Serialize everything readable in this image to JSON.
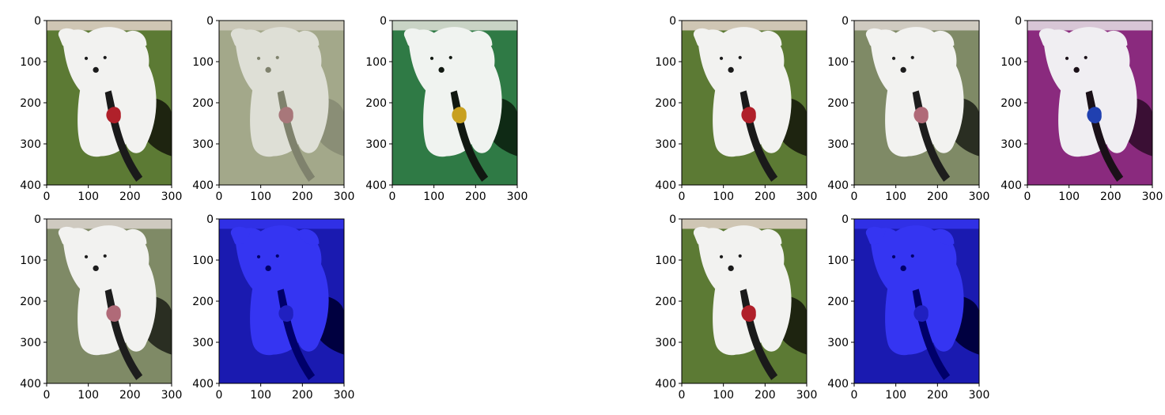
{
  "chart_data": [
    {
      "type": "image",
      "variant": "original",
      "tint": "natural",
      "x_ticks": [
        0,
        100,
        200,
        300
      ],
      "y_ticks": [
        0,
        100,
        200,
        300,
        400
      ],
      "xlim": [
        0,
        300
      ],
      "ylim": [
        400,
        0
      ]
    },
    {
      "type": "image",
      "variant": "washed-out",
      "tint": "olive-grey",
      "x_ticks": [
        0,
        100,
        200,
        300
      ],
      "y_ticks": [
        0,
        100,
        200,
        300,
        400
      ],
      "xlim": [
        0,
        300
      ],
      "ylim": [
        400,
        0
      ]
    },
    {
      "type": "image",
      "variant": "green-tinted",
      "tint": "green",
      "x_ticks": [
        0,
        100,
        200,
        300
      ],
      "y_ticks": [
        0,
        100,
        200,
        300,
        400
      ],
      "xlim": [
        0,
        300
      ],
      "ylim": [
        400,
        0
      ]
    },
    {
      "type": "image",
      "variant": "desaturated",
      "tint": "grey-green",
      "x_ticks": [
        0,
        100,
        200,
        300
      ],
      "y_ticks": [
        0,
        100,
        200,
        300,
        400
      ],
      "xlim": [
        0,
        300
      ],
      "ylim": [
        400,
        0
      ]
    },
    {
      "type": "image",
      "variant": "blue-channel",
      "tint": "blue",
      "x_ticks": [
        0,
        100,
        200,
        300
      ],
      "y_ticks": [
        0,
        100,
        200,
        300,
        400
      ],
      "xlim": [
        0,
        300
      ],
      "ylim": [
        400,
        0
      ]
    },
    {
      "type": "image",
      "variant": "original",
      "tint": "natural",
      "x_ticks": [
        0,
        100,
        200,
        300
      ],
      "y_ticks": [
        0,
        100,
        200,
        300,
        400
      ],
      "xlim": [
        0,
        300
      ],
      "ylim": [
        400,
        0
      ]
    },
    {
      "type": "image",
      "variant": "washed-out",
      "tint": "grey-green",
      "x_ticks": [
        0,
        100,
        200,
        300
      ],
      "y_ticks": [
        0,
        100,
        200,
        300,
        400
      ],
      "xlim": [
        0,
        300
      ],
      "ylim": [
        400,
        0
      ]
    },
    {
      "type": "image",
      "variant": "magenta-tinted",
      "tint": "magenta",
      "x_ticks": [
        0,
        100,
        200,
        300
      ],
      "y_ticks": [
        0,
        100,
        200,
        300,
        400
      ],
      "xlim": [
        0,
        300
      ],
      "ylim": [
        400,
        0
      ]
    },
    {
      "type": "image",
      "variant": "original",
      "tint": "natural",
      "x_ticks": [
        0,
        100,
        200,
        300
      ],
      "y_ticks": [
        0,
        100,
        200,
        300,
        400
      ],
      "xlim": [
        0,
        300
      ],
      "ylim": [
        400,
        0
      ]
    },
    {
      "type": "image",
      "variant": "blue-channel",
      "tint": "blue",
      "x_ticks": [
        0,
        100,
        200,
        300
      ],
      "y_ticks": [
        0,
        100,
        200,
        300,
        400
      ],
      "xlim": [
        0,
        300
      ],
      "ylim": [
        400,
        0
      ]
    }
  ],
  "palettes": {
    "natural": {
      "bg": "#5c7a34",
      "top": "#cfc6b4",
      "dog": "#f2f2f0",
      "shadow": "#1e2410",
      "leash": "#1a1a1a",
      "accent": "#b0202a"
    },
    "olive-grey": {
      "bg": "#a3a88a",
      "top": "#c9c6b6",
      "dog": "#dedfd6",
      "shadow": "#8a8e76",
      "leash": "#7f826d",
      "accent": "#a8777a"
    },
    "green": {
      "bg": "#2f7a45",
      "top": "#c9d3c5",
      "dog": "#f0f3f0",
      "shadow": "#0f2a15",
      "leash": "#111811",
      "accent": "#c8a020"
    },
    "grey-green": {
      "bg": "#7f8a66",
      "top": "#cfcac0",
      "dog": "#f2f2f0",
      "shadow": "#2a2e22",
      "leash": "#1d1d1d",
      "accent": "#b06a78"
    },
    "blue": {
      "bg": "#1a1ab0",
      "top": "#3030e6",
      "dog": "#3535f2",
      "shadow": "#000040",
      "leash": "#00006a",
      "accent": "#2020c0"
    },
    "magenta": {
      "bg": "#8a2a7e",
      "top": "#d8c6d6",
      "dog": "#f0eef2",
      "shadow": "#3a0f34",
      "leash": "#1a1018",
      "accent": "#2040b0"
    }
  }
}
